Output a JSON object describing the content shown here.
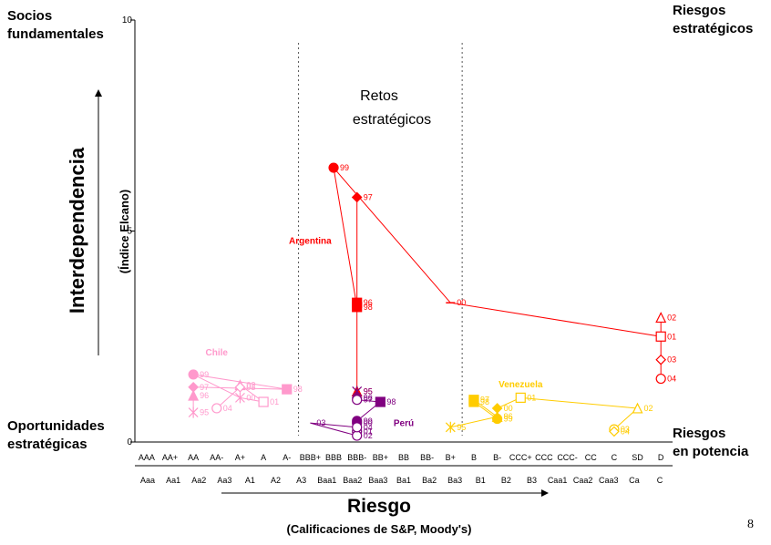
{
  "corners": {
    "top_left": [
      "Socios",
      "fundamentales"
    ],
    "top_right": [
      "Riesgos",
      "estratégicos"
    ],
    "bottom_left": [
      "Oportunidades",
      "estratégicas"
    ],
    "bottom_right": [
      "Riesgos",
      "en potencia"
    ]
  },
  "y_title": "Interdependencia",
  "y_subtitle": "(Índice Elcano)",
  "x_title": "Riesgo",
  "x_subtitle": "(Calificaciones de S&P, Moody's)",
  "page_number": "8",
  "chart_data": {
    "type": "scatter",
    "ylim": [
      0,
      10
    ],
    "y_ticks": [
      0,
      5,
      10
    ],
    "sp_ratings": [
      "AAA",
      "AA+",
      "AA",
      "AA-",
      "A+",
      "A",
      "A-",
      "BBB+",
      "BBB",
      "BBB-",
      "BB+",
      "BB",
      "BB-",
      "B+",
      "B",
      "B-",
      "CCC+",
      "CCC",
      "CCC-",
      "CC",
      "C",
      "SD",
      "D"
    ],
    "moodys_ratings": [
      "Aaa",
      "Aa1",
      "Aa2",
      "Aa3",
      "A1",
      "A2",
      "A3",
      "Baa1",
      "Baa2",
      "Baa3",
      "Ba1",
      "Ba2",
      "Ba3",
      "B1",
      "B2",
      "B3",
      "Caa1",
      "Caa2",
      "Caa3",
      "Ca",
      "C"
    ],
    "region_label": [
      "Retos",
      "estratégicos"
    ],
    "dividers_after": [
      "A-",
      "B+"
    ],
    "colors": {
      "Argentina": "#ff0000",
      "Chile": "#ff99cc",
      "Venezuela": "#ffcc00",
      "Peru": "#800080"
    },
    "series": [
      {
        "name": "Argentina",
        "color": "#ff0000",
        "label": "Argentina",
        "label_x": "BBB+",
        "label_y": 4.7,
        "points": [
          {
            "year": "95",
            "x": "BBB-",
            "y": 1.2,
            "marker": "triangle",
            "filled": true
          },
          {
            "year": "96",
            "x": "BBB-",
            "y": 3.3,
            "marker": "square",
            "filled": true
          },
          {
            "year": "97",
            "x": "BBB-",
            "y": 5.8,
            "marker": "diamond",
            "filled": true
          },
          {
            "year": "98",
            "x": "BBB-",
            "y": 3.2,
            "marker": "square",
            "filled": true
          },
          {
            "year": "99",
            "x": "BBB",
            "y": 6.5,
            "marker": "circle",
            "filled": true
          },
          {
            "year": "00",
            "x": "B+",
            "y": 3.3,
            "marker": "dash",
            "filled": true
          },
          {
            "year": "01",
            "x": "D",
            "y": 2.5,
            "marker": "square",
            "filled": false
          },
          {
            "year": "02",
            "x": "D",
            "y": 2.95,
            "marker": "triangle",
            "filled": false
          },
          {
            "year": "03",
            "x": "D",
            "y": 1.95,
            "marker": "diamond",
            "filled": false
          },
          {
            "year": "04",
            "x": "D",
            "y": 1.5,
            "marker": "circle",
            "filled": false
          }
        ]
      },
      {
        "name": "Chile",
        "color": "#ff99cc",
        "label": "Chile",
        "label_x": "AA-",
        "label_y": 2.05,
        "points": [
          {
            "year": "95",
            "x": "AA",
            "y": 0.7,
            "marker": "star",
            "filled": true
          },
          {
            "year": "96",
            "x": "AA",
            "y": 1.1,
            "marker": "triangle",
            "filled": true
          },
          {
            "year": "97",
            "x": "AA",
            "y": 1.3,
            "marker": "diamond",
            "filled": true
          },
          {
            "year": "98",
            "x": "A-",
            "y": 1.25,
            "marker": "square",
            "filled": true
          },
          {
            "year": "99",
            "x": "AA",
            "y": 1.6,
            "marker": "circle",
            "filled": true
          },
          {
            "year": "00",
            "x": "A+",
            "y": 1.05,
            "marker": "star",
            "filled": false
          },
          {
            "year": "01",
            "x": "A",
            "y": 0.95,
            "marker": "square",
            "filled": false
          },
          {
            "year": "02",
            "x": "A+",
            "y": 1.35,
            "marker": "triangle",
            "filled": false
          },
          {
            "year": "03",
            "x": "A+",
            "y": 1.3,
            "marker": "diamond",
            "filled": false
          },
          {
            "year": "04",
            "x": "AA-",
            "y": 0.8,
            "marker": "circle",
            "filled": false
          }
        ]
      },
      {
        "name": "Venezuela",
        "color": "#ffcc00",
        "label": "Venezuela",
        "label_x": "CCC+",
        "label_y": 1.3,
        "points": [
          {
            "year": "95",
            "x": "B+",
            "y": 0.35,
            "marker": "star",
            "filled": true
          },
          {
            "year": "96",
            "x": "B-",
            "y": 0.6,
            "marker": "triangle",
            "filled": true
          },
          {
            "year": "97",
            "x": "B",
            "y": 1.0,
            "marker": "square",
            "filled": true
          },
          {
            "year": "98",
            "x": "B",
            "y": 0.95,
            "marker": "square",
            "filled": true
          },
          {
            "year": "99",
            "x": "B-",
            "y": 0.55,
            "marker": "circle",
            "filled": true
          },
          {
            "year": "00",
            "x": "B-",
            "y": 0.8,
            "marker": "diamond",
            "filled": true
          },
          {
            "year": "01",
            "x": "CCC+",
            "y": 1.05,
            "marker": "square",
            "filled": false
          },
          {
            "year": "02",
            "x": "SD",
            "y": 0.8,
            "marker": "triangle",
            "filled": false
          },
          {
            "year": "03",
            "x": "C",
            "y": 0.3,
            "marker": "circle",
            "filled": false
          },
          {
            "year": "04",
            "x": "C",
            "y": 0.25,
            "marker": "diamond",
            "filled": false
          }
        ]
      },
      {
        "name": "Perú",
        "color": "#800080",
        "label": "Perú",
        "label_x": "BB",
        "label_y": 0.38,
        "points": [
          {
            "year": "95",
            "x": "BBB-",
            "y": 1.2,
            "marker": "star",
            "filled": false
          },
          {
            "year": "96",
            "x": "BBB-",
            "y": 1.05,
            "marker": "diamond",
            "filled": true
          },
          {
            "year": "97",
            "x": "BBB-",
            "y": 1.0,
            "marker": "circle",
            "filled": false
          },
          {
            "year": "98",
            "x": "BB+",
            "y": 0.95,
            "marker": "square",
            "filled": true
          },
          {
            "year": "99",
            "x": "BBB-",
            "y": 0.5,
            "marker": "circle",
            "filled": true
          },
          {
            "year": "00",
            "x": "BBB-",
            "y": 0.45,
            "marker": "circle",
            "filled": true
          },
          {
            "year": "01",
            "x": "BBB-",
            "y": 0.25,
            "marker": "circle",
            "filled": false
          },
          {
            "year": "02",
            "x": "BBB-",
            "y": 0.15,
            "marker": "circle",
            "filled": false
          },
          {
            "year": "03",
            "x": "BBB+",
            "y": 0.45,
            "marker": "none",
            "filled": false
          },
          {
            "year": "04",
            "x": "BBB-",
            "y": 0.35,
            "marker": "circle",
            "filled": false
          }
        ]
      }
    ]
  }
}
